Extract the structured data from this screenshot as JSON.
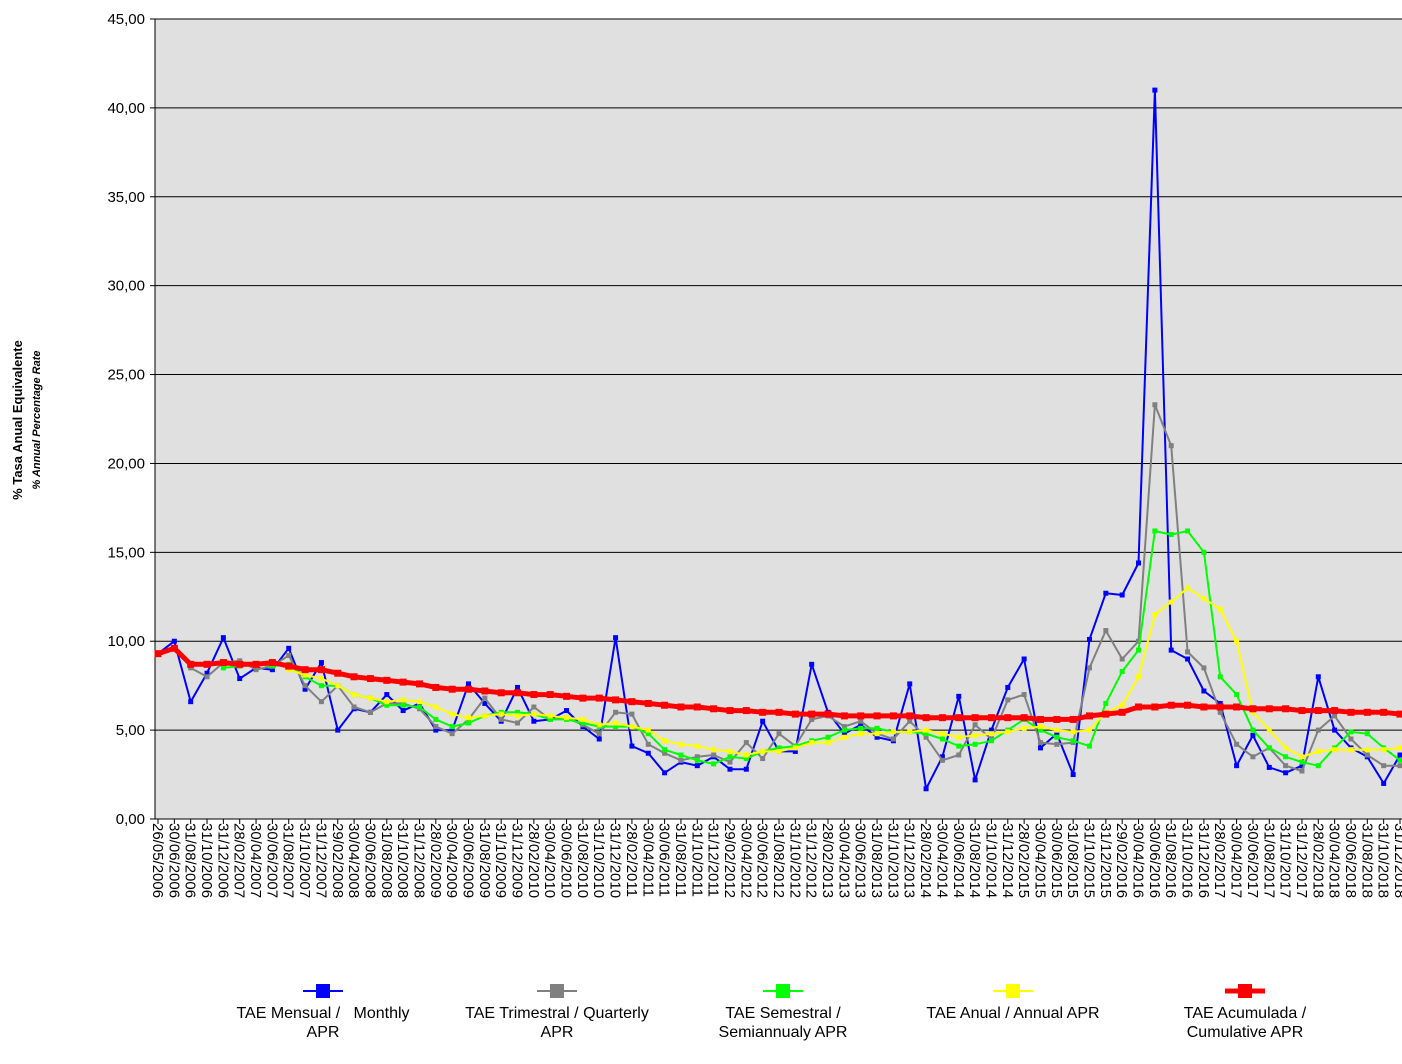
{
  "chart_data": {
    "type": "line",
    "y_label": "% Tasa Anual Equivalente",
    "y_sublabel": "% Annual Percentage Rate",
    "categories": [
      "26/05/2006",
      "30/06/2006",
      "31/08/2006",
      "31/10/2006",
      "31/12/2006",
      "28/02/2007",
      "30/04/2007",
      "30/06/2007",
      "31/08/2007",
      "31/10/2007",
      "31/12/2007",
      "29/02/2008",
      "30/04/2008",
      "30/06/2008",
      "31/08/2008",
      "31/10/2008",
      "31/12/2008",
      "28/02/2009",
      "30/04/2009",
      "30/06/2009",
      "31/08/2009",
      "31/10/2009",
      "31/12/2009",
      "28/02/2010",
      "30/04/2010",
      "30/06/2010",
      "31/08/2010",
      "31/10/2010",
      "31/12/2010",
      "28/02/2011",
      "30/04/2011",
      "30/06/2011",
      "31/08/2011",
      "31/10/2011",
      "31/12/2011",
      "29/02/2012",
      "30/04/2012",
      "30/06/2012",
      "31/08/2012",
      "31/10/2012",
      "31/12/2012",
      "28/02/2013",
      "30/04/2013",
      "30/06/2013",
      "31/08/2013",
      "31/10/2013",
      "31/12/2013",
      "28/02/2014",
      "30/04/2014",
      "30/06/2014",
      "31/08/2014",
      "31/10/2014",
      "31/12/2014",
      "28/02/2015",
      "30/04/2015",
      "30/06/2015",
      "31/08/2015",
      "31/10/2015",
      "31/12/2015",
      "29/02/2016",
      "30/04/2016",
      "30/06/2016",
      "31/08/2016",
      "31/10/2016",
      "31/12/2016",
      "28/02/2017",
      "30/04/2017",
      "30/06/2017",
      "31/08/2017",
      "31/10/2017",
      "31/12/2017",
      "28/02/2018",
      "30/04/2018",
      "30/06/2018",
      "31/08/2018",
      "31/10/2018",
      "31/12/2018"
    ],
    "series": [
      {
        "name": "TAE Mensual /   Monthly APR",
        "color": "#0000ff",
        "values": [
          9.3,
          10.0,
          6.6,
          8.2,
          10.2,
          7.9,
          8.5,
          8.4,
          9.6,
          7.3,
          8.8,
          5.0,
          6.2,
          6.0,
          7.0,
          6.1,
          6.5,
          5.0,
          5.0,
          7.6,
          6.5,
          5.5,
          7.4,
          5.5,
          5.6,
          6.1,
          5.2,
          4.5,
          10.2,
          4.1,
          3.7,
          2.6,
          3.2,
          3.0,
          3.5,
          2.8,
          2.8,
          5.5,
          3.8,
          3.8,
          8.7,
          6.0,
          4.8,
          5.3,
          4.6,
          4.4,
          7.6,
          1.7,
          3.5,
          6.9,
          2.2,
          5.0,
          7.4,
          9.0,
          4.0,
          4.8,
          2.5,
          10.1,
          12.7,
          12.6,
          14.4,
          41.0,
          9.5,
          9.0,
          7.2,
          6.5,
          3.0,
          4.7,
          2.9,
          2.6,
          3.0,
          8.0,
          5.0,
          4.0,
          3.5,
          2.0,
          3.6
        ]
      },
      {
        "name": "TAE Trimestral / Quarterly APR",
        "color": "#808080",
        "values": [
          null,
          null,
          8.5,
          8.0,
          8.8,
          8.9,
          8.4,
          8.6,
          9.2,
          7.5,
          6.6,
          7.5,
          6.3,
          6.0,
          6.5,
          6.5,
          6.2,
          5.2,
          4.8,
          5.6,
          6.8,
          5.6,
          5.4,
          6.3,
          5.6,
          5.7,
          5.3,
          4.8,
          6.0,
          5.9,
          4.2,
          3.7,
          3.3,
          3.5,
          3.6,
          3.2,
          4.3,
          3.4,
          4.8,
          4.1,
          5.6,
          5.8,
          5.2,
          5.5,
          4.8,
          4.5,
          5.5,
          4.6,
          3.3,
          3.6,
          5.3,
          4.5,
          6.7,
          7.0,
          4.3,
          4.2,
          4.3,
          8.5,
          10.6,
          9.0,
          10.0,
          23.3,
          21.0,
          9.4,
          8.5,
          6.0,
          4.2,
          3.5,
          4.0,
          3.0,
          2.7,
          5.0,
          5.8,
          4.5,
          3.6,
          3.0,
          3.0
        ]
      },
      {
        "name": "TAE Semestral / Semiannualy APR",
        "color": "#00ff00",
        "values": [
          null,
          null,
          null,
          null,
          8.5,
          8.6,
          8.7,
          8.6,
          8.7,
          8.0,
          7.5,
          7.5,
          7.0,
          6.8,
          6.4,
          6.4,
          6.3,
          5.6,
          5.2,
          5.4,
          5.8,
          6.0,
          6.0,
          5.9,
          5.6,
          5.6,
          5.4,
          5.2,
          5.2,
          5.2,
          4.8,
          3.9,
          3.6,
          3.3,
          3.1,
          3.5,
          3.4,
          3.8,
          4.0,
          4.1,
          4.4,
          4.6,
          5.0,
          5.1,
          5.1,
          4.9,
          4.9,
          4.8,
          4.5,
          4.1,
          4.2,
          4.4,
          5.0,
          5.6,
          5.0,
          4.6,
          4.4,
          4.1,
          6.5,
          8.3,
          9.5,
          16.2,
          16.0,
          16.2,
          15.0,
          8.0,
          7.0,
          5.0,
          4.0,
          3.5,
          3.2,
          3.0,
          4.0,
          4.9,
          4.8,
          4.0,
          3.3
        ]
      },
      {
        "name": "TAE Anual / Annual APR",
        "color": "#ffff00",
        "values": [
          null,
          null,
          null,
          null,
          null,
          null,
          null,
          null,
          8.4,
          8.1,
          7.9,
          7.5,
          7.0,
          6.8,
          6.6,
          6.7,
          6.6,
          6.3,
          5.9,
          5.7,
          5.8,
          5.9,
          5.8,
          5.9,
          5.8,
          5.7,
          5.6,
          5.3,
          5.4,
          5.2,
          5.0,
          4.4,
          4.2,
          4.1,
          3.9,
          3.8,
          3.6,
          3.8,
          3.8,
          4.0,
          4.3,
          4.3,
          4.6,
          4.8,
          4.8,
          4.9,
          4.9,
          5.0,
          4.8,
          4.6,
          4.7,
          4.8,
          4.9,
          5.1,
          5.2,
          5.0,
          4.9,
          5.0,
          6.0,
          6.4,
          8.0,
          11.5,
          12.2,
          13.0,
          12.4,
          11.8,
          10.0,
          6.0,
          5.0,
          4.0,
          3.5,
          3.8,
          3.9,
          3.9,
          3.9,
          3.9,
          4.0
        ]
      },
      {
        "name": "TAE Acumulada / Cumulative APR",
        "color": "#ff0000",
        "values": [
          9.3,
          9.6,
          8.7,
          8.7,
          8.8,
          8.7,
          8.7,
          8.8,
          8.6,
          8.4,
          8.4,
          8.2,
          8.0,
          7.9,
          7.8,
          7.7,
          7.6,
          7.4,
          7.3,
          7.3,
          7.2,
          7.1,
          7.1,
          7.0,
          7.0,
          6.9,
          6.8,
          6.8,
          6.7,
          6.6,
          6.5,
          6.4,
          6.3,
          6.3,
          6.2,
          6.1,
          6.1,
          6.0,
          6.0,
          5.9,
          5.9,
          5.9,
          5.8,
          5.8,
          5.8,
          5.8,
          5.8,
          5.7,
          5.7,
          5.7,
          5.7,
          5.7,
          5.7,
          5.7,
          5.6,
          5.6,
          5.6,
          5.8,
          5.9,
          6.0,
          6.3,
          6.3,
          6.4,
          6.4,
          6.3,
          6.3,
          6.3,
          6.2,
          6.2,
          6.2,
          6.1,
          6.1,
          6.1,
          6.0,
          6.0,
          6.0,
          5.9
        ]
      }
    ],
    "ylim": [
      0,
      45
    ],
    "yticks": [
      {
        "value": 0,
        "label": "0,00"
      },
      {
        "value": 5,
        "label": "5,00"
      },
      {
        "value": 10,
        "label": "10,00"
      },
      {
        "value": 15,
        "label": "15,00"
      },
      {
        "value": 20,
        "label": "20,00"
      },
      {
        "value": 25,
        "label": "25,00"
      },
      {
        "value": 30,
        "label": "30,00"
      },
      {
        "value": 35,
        "label": "35,00"
      },
      {
        "value": 40,
        "label": "40,00"
      },
      {
        "value": 45,
        "label": "45,00"
      }
    ],
    "grid": true
  }
}
